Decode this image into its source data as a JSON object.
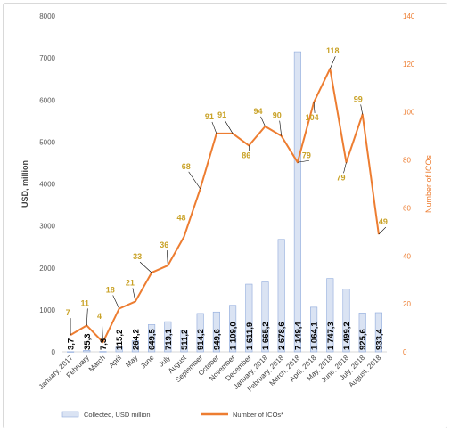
{
  "chart_data": {
    "type": "bar",
    "title": "",
    "categories": [
      "January, 2017",
      "February",
      "March",
      "April",
      "May",
      "June",
      "July",
      "August",
      "September",
      "October",
      "November",
      "December",
      "January, 2018",
      "February, 2018",
      "March, 2018",
      "April, 2018",
      "May, 2018",
      "June, 2018",
      "July, 2018",
      "August, 2018"
    ],
    "series": [
      {
        "name": "Collected, USD million",
        "type": "bar",
        "axis": "left",
        "color": "#DAE3F3",
        "border_color": "#8FAADC",
        "values": [
          3.7,
          35.3,
          7.3,
          115.2,
          264.2,
          649.5,
          719.1,
          511.2,
          914.2,
          949.6,
          1109.0,
          1611.9,
          1665.2,
          2678.6,
          7149.4,
          1064.1,
          1747.3,
          1499.2,
          925.6,
          933.4
        ],
        "labels": [
          "3,7",
          "35,3",
          "7,3",
          "115,2",
          "264,2",
          "649,5",
          "719,1",
          "511,2",
          "914,2",
          "949,6",
          "1 109,0",
          "1 611,9",
          "1 665,2",
          "2 678,6",
          "7 149,4",
          "1 064,1",
          "1 747,3",
          "1 499,2",
          "925,6",
          "933,4"
        ]
      },
      {
        "name": "Number of ICOs*",
        "type": "line",
        "axis": "right",
        "color": "#ED7D31",
        "values": [
          7,
          11,
          4,
          18,
          21,
          33,
          36,
          48,
          68,
          91,
          91,
          86,
          94,
          90,
          79,
          104,
          118,
          79,
          99,
          49
        ],
        "labels": [
          "7",
          "11",
          "4",
          "18",
          "21",
          "33",
          "36",
          "48",
          "68",
          "91",
          "91",
          "86",
          "94",
          "90",
          "79",
          "104",
          "118",
          "79",
          "99",
          "49"
        ]
      }
    ],
    "ylabel": "USD, million",
    "y2label": "Number of ICOs",
    "ylim": [
      0,
      8000
    ],
    "y2lim": [
      0,
      140
    ],
    "yticks": [
      "0",
      "1000",
      "2000",
      "3000",
      "4000",
      "5000",
      "6000",
      "7000",
      "8000"
    ],
    "y2ticks": [
      "0",
      "20",
      "40",
      "60",
      "80",
      "100",
      "120",
      "140"
    ],
    "grid": false,
    "legend_position": "bottom",
    "label_color": "#C9A227"
  }
}
